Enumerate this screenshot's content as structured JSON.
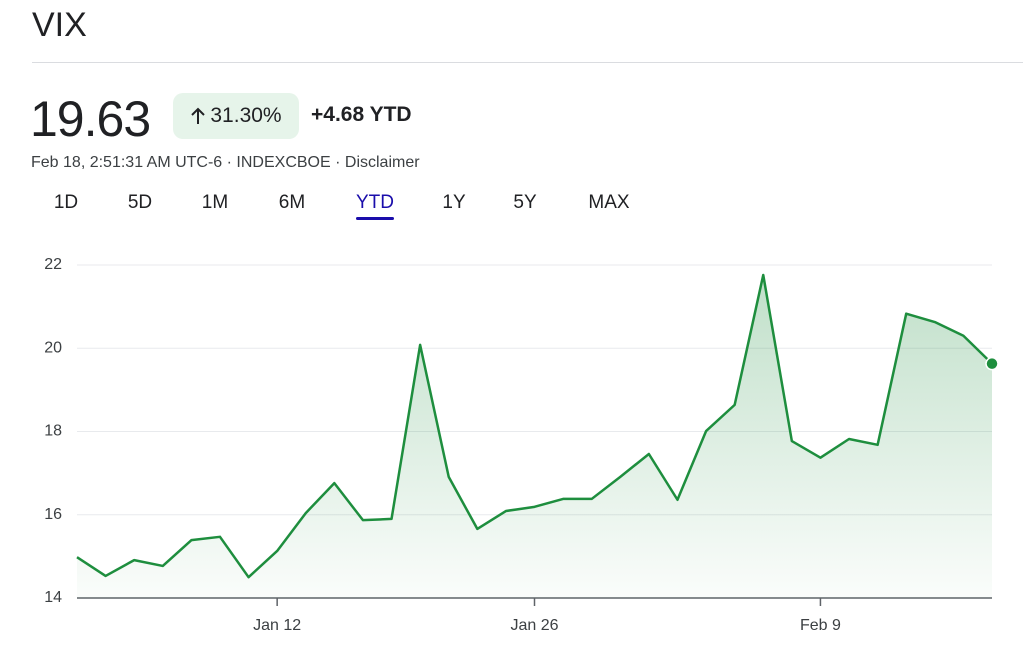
{
  "header": {
    "title": "VIX",
    "price": "19.63",
    "change_percent": "31.30%",
    "change_value": "+4.68 YTD",
    "meta": "Feb 18, 2:51:31 AM UTC-6 · INDEXCBOE · Disclaimer"
  },
  "tabs": {
    "items": [
      "1D",
      "5D",
      "1M",
      "6M",
      "YTD",
      "1Y",
      "5Y",
      "MAX"
    ],
    "selected": "YTD"
  },
  "chart_data": {
    "type": "line",
    "categories": [
      null,
      null,
      null,
      null,
      null,
      null,
      null,
      "Jan 12",
      null,
      null,
      null,
      null,
      null,
      null,
      null,
      null,
      "Jan 26",
      null,
      null,
      null,
      null,
      null,
      null,
      null,
      null,
      null,
      "Feb 9",
      null,
      null,
      null,
      null,
      null,
      null
    ],
    "values": [
      14.98,
      14.53,
      14.91,
      14.77,
      15.39,
      15.47,
      14.5,
      15.13,
      16.04,
      16.76,
      15.87,
      15.9,
      20.08,
      16.91,
      15.66,
      16.09,
      16.19,
      16.38,
      16.38,
      16.91,
      17.46,
      16.36,
      18.01,
      18.64,
      21.76,
      17.77,
      17.37,
      17.82,
      17.68,
      20.83,
      20.63,
      20.3,
      19.63
    ],
    "color": "#1e8e3e",
    "ylim": [
      14,
      22
    ],
    "yticks": [
      14,
      16,
      18,
      20,
      22
    ],
    "grid": true
  }
}
